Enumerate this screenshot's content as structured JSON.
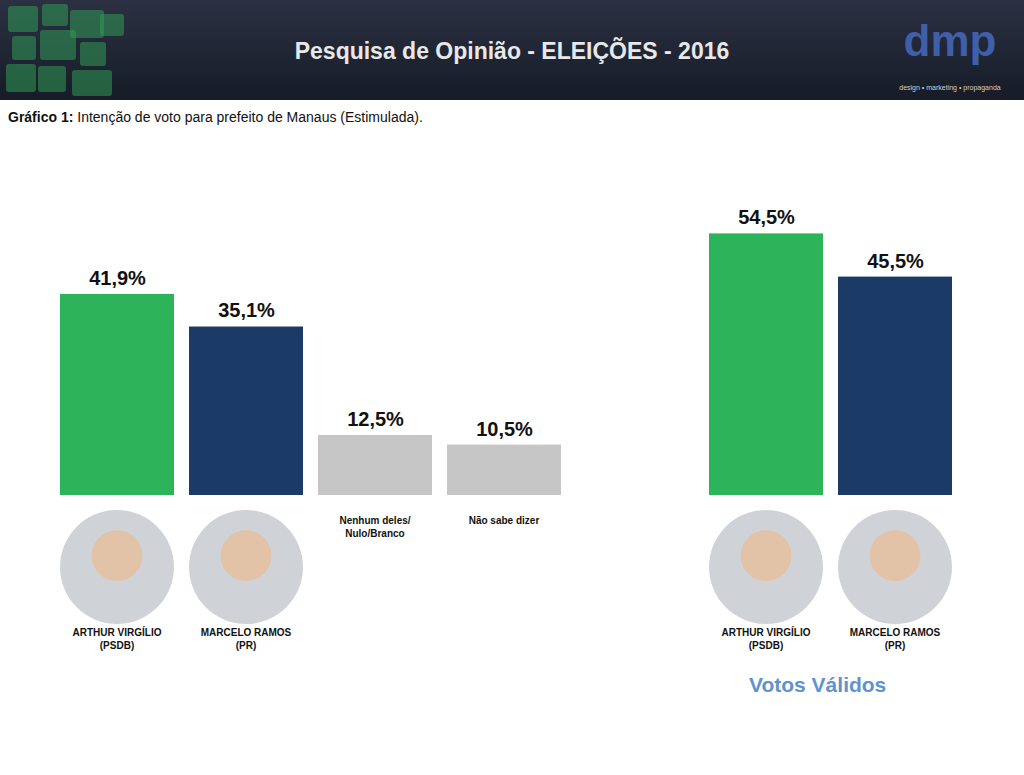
{
  "header": {
    "title": "Pesquisa de Opinião - ELEIÇÕES - 2016",
    "logo": "dmp",
    "logo_tagline": "design • marketing • propaganda"
  },
  "chart_data": [
    {
      "type": "bar",
      "title": "Gráfico 1: Intenção de voto para prefeito de Manaus (Estimulada).",
      "categories": [
        "ARTHUR VIRGÍLIO (PSDB)",
        "MARCELO RAMOS (PR)",
        "Nenhum deles/ Nulo/Branco",
        "Não sabe dizer"
      ],
      "values": [
        41.9,
        35.1,
        12.5,
        10.5
      ],
      "value_labels": [
        "41,9%",
        "35,1%",
        "12,5%",
        "10,5%"
      ],
      "colors": [
        "#2db35a",
        "#1b3a66",
        "#c6c6c6",
        "#c6c6c6"
      ],
      "ylim": [
        0,
        60
      ],
      "data_labels": true,
      "tick_labels": false,
      "grid": false
    },
    {
      "type": "bar",
      "title": "Votos Válidos",
      "categories": [
        "ARTHUR VIRGÍLIO (PSDB)",
        "MARCELO RAMOS (PR)"
      ],
      "values": [
        54.5,
        45.5
      ],
      "value_labels": [
        "54,5%",
        "45,5%"
      ],
      "colors": [
        "#2db35a",
        "#1b3a66"
      ],
      "ylim": [
        0,
        60
      ],
      "data_labels": true,
      "tick_labels": false,
      "grid": false
    }
  ]
}
